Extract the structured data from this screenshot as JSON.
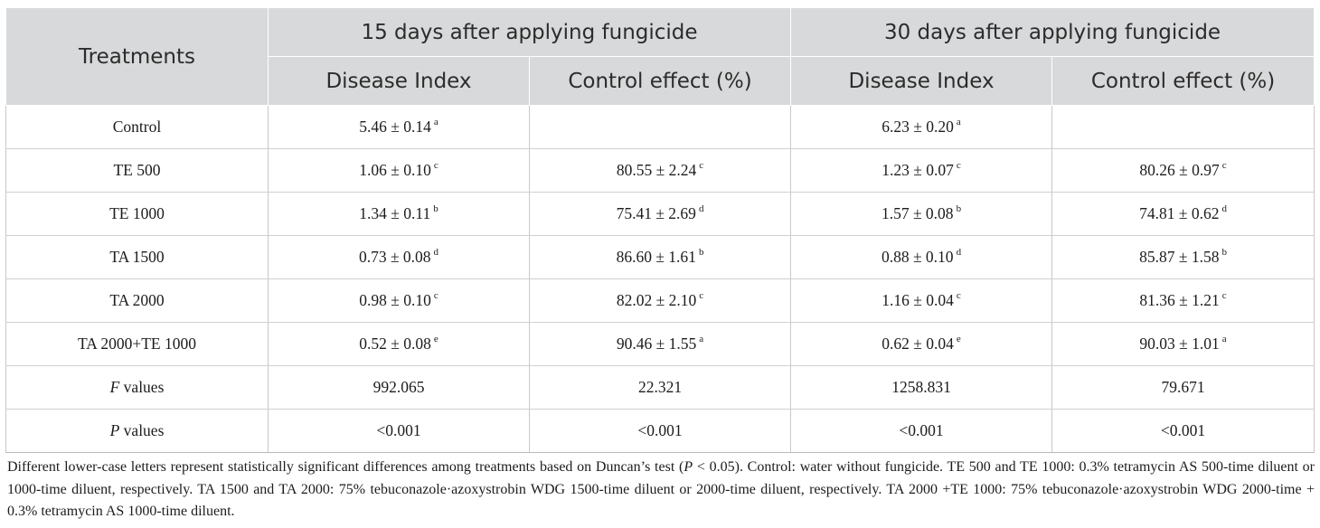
{
  "table": {
    "header": {
      "treatments": "Treatments",
      "group1": "15 days after applying fungicide",
      "group2": "30 days after applying fungicide",
      "sub_di": "Disease Index",
      "sub_ce": "Control effect (%)"
    },
    "rows": [
      {
        "name": "Control",
        "d15": "5.46 ± 0.14",
        "d15_sup": "a",
        "c15": "",
        "c15_sup": "",
        "d30": "6.23 ± 0.20",
        "d30_sup": "a",
        "c30": "",
        "c30_sup": ""
      },
      {
        "name": "TE 500",
        "d15": "1.06 ± 0.10",
        "d15_sup": "c",
        "c15": "80.55 ± 2.24",
        "c15_sup": "c",
        "d30": "1.23 ± 0.07",
        "d30_sup": "c",
        "c30": "80.26 ± 0.97",
        "c30_sup": "c"
      },
      {
        "name": "TE 1000",
        "d15": "1.34 ± 0.11",
        "d15_sup": "b",
        "c15": "75.41 ± 2.69",
        "c15_sup": "d",
        "d30": "1.57 ± 0.08",
        "d30_sup": "b",
        "c30": "74.81 ± 0.62",
        "c30_sup": "d"
      },
      {
        "name": "TA 1500",
        "d15": "0.73 ± 0.08",
        "d15_sup": "d",
        "c15": "86.60 ± 1.61",
        "c15_sup": "b",
        "d30": "0.88 ± 0.10",
        "d30_sup": "d",
        "c30": "85.87 ± 1.58",
        "c30_sup": "b"
      },
      {
        "name": "TA 2000",
        "d15": "0.98 ± 0.10",
        "d15_sup": "c",
        "c15": "82.02 ± 2.10",
        "c15_sup": "c",
        "d30": "1.16 ± 0.04",
        "d30_sup": "c",
        "c30": "81.36 ± 1.21",
        "c30_sup": "c"
      },
      {
        "name": "TA 2000+TE 1000",
        "d15": "0.52 ± 0.08",
        "d15_sup": "e",
        "c15": "90.46 ± 1.55",
        "c15_sup": "a",
        "d30": "0.62 ± 0.04",
        "d30_sup": "e",
        "c30": "90.03 ± 1.01",
        "c30_sup": "a"
      }
    ],
    "f_row": {
      "label_italic": "F",
      "label_rest": " values",
      "d15": "992.065",
      "c15": "22.321",
      "d30": "1258.831",
      "c30": "79.671"
    },
    "p_row": {
      "label_italic": "P",
      "label_rest": " values",
      "d15": "<0.001",
      "c15": "<0.001",
      "d30": "<0.001",
      "c30": "<0.001"
    }
  },
  "footnote": {
    "part1": "Different lower-case letters represent statistically significant differences among treatments based on Duncan’s test (",
    "p_italic": "P",
    "part2": " < 0.05). Control: water without fungicide. TE 500 and TE 1000: 0.3% tetramycin AS 500-time diluent or 1000-time diluent, respectively. TA 1500 and TA 2000: 75% tebuconazole·azoxystrobin WDG 1500-time diluent or 2000-time diluent, respectively. TA 2000 +TE 1000: 75% tebuconazole·azoxystrobin WDG 2000-time + 0.3% tetramycin AS 1000-time diluent."
  }
}
